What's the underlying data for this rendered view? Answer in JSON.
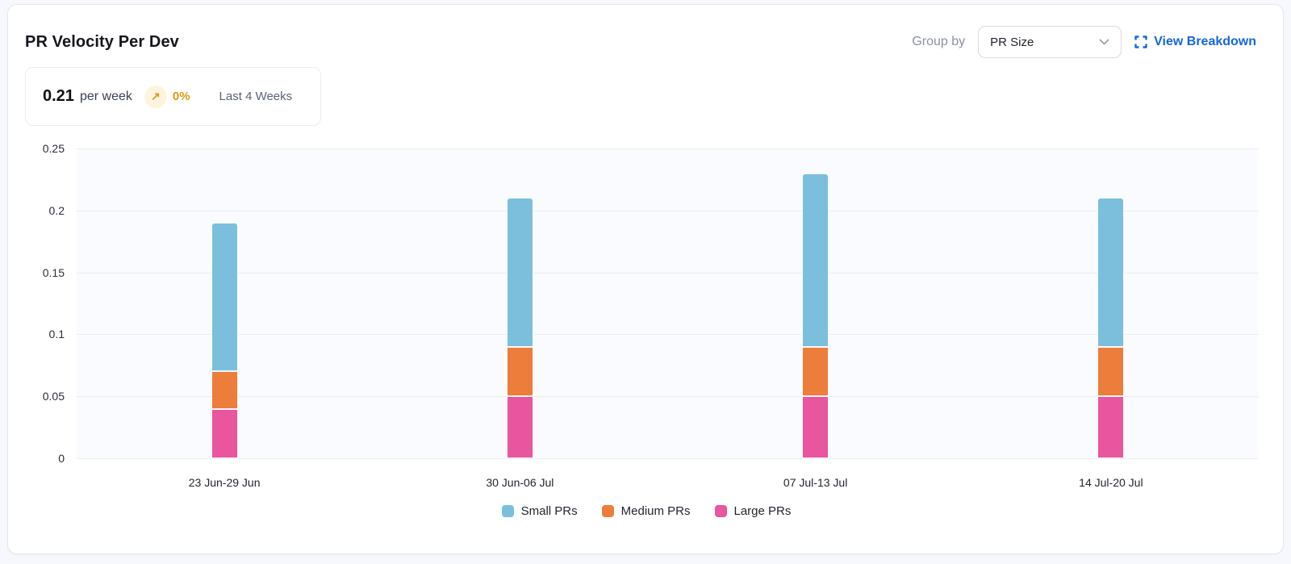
{
  "card": {
    "title": "PR Velocity Per Dev"
  },
  "header": {
    "group_by_label": "Group by",
    "group_by_value": "PR Size",
    "view_breakdown_label": "View Breakdown"
  },
  "stat": {
    "value": "0.21",
    "unit": "per week",
    "trend_arrow": "↗",
    "trend_value": "0%",
    "period": "Last 4 Weeks"
  },
  "chart_data": {
    "type": "bar",
    "stacked": true,
    "title": "PR Velocity Per Dev",
    "xlabel": "",
    "ylabel": "",
    "categories": [
      "23 Jun-29 Jun",
      "30 Jun-06 Jul",
      "07 Jul-13 Jul",
      "14 Jul-20 Jul"
    ],
    "series": [
      {
        "name": "Small PRs",
        "color": "#7bbfdc",
        "values": [
          0.12,
          0.12,
          0.14,
          0.12
        ]
      },
      {
        "name": "Medium PRs",
        "color": "#ed7d3b",
        "values": [
          0.03,
          0.04,
          0.04,
          0.04
        ]
      },
      {
        "name": "Large PRs",
        "color": "#e9559f",
        "values": [
          0.04,
          0.05,
          0.05,
          0.05
        ]
      }
    ],
    "totals": [
      0.19,
      0.21,
      0.23,
      0.21
    ],
    "y_ticks": [
      0,
      0.05,
      0.1,
      0.15,
      0.2,
      0.25
    ],
    "ylim": [
      0,
      0.25
    ],
    "grid": true,
    "legend_position": "bottom",
    "plot_bg": "#fafbfe",
    "gridline_color": "#eaecf2"
  },
  "colors": {
    "accent_link": "#1667d9",
    "trend_amber": "#dd9a14",
    "trend_badge_bg": "#fdf4de",
    "card_border": "#e4e7f0",
    "page_bg": "#f7f8fd"
  }
}
